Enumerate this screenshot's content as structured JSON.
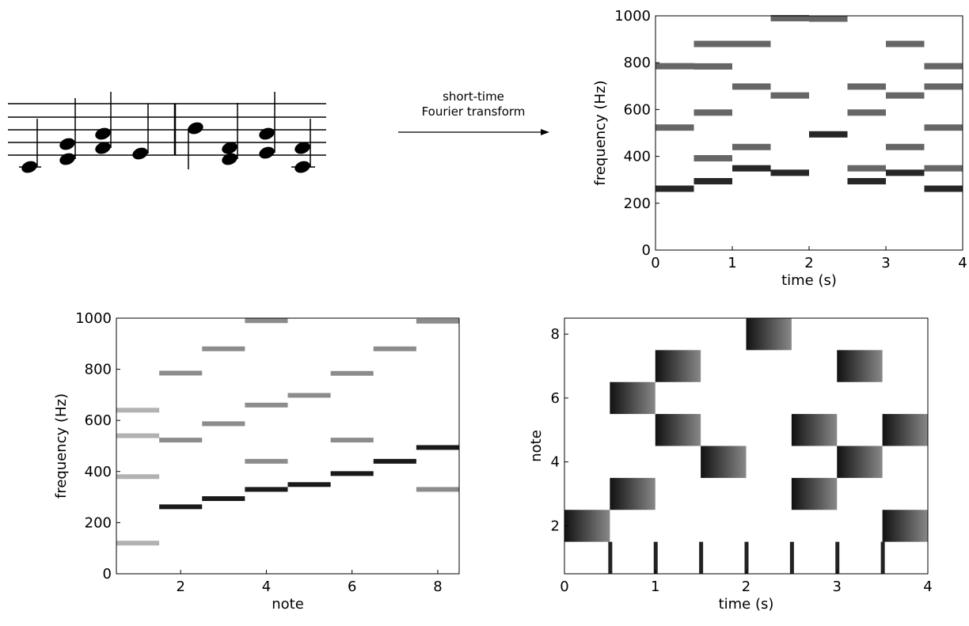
{
  "diagram": {
    "arrow_label": [
      "short-time",
      "Fourier transform"
    ]
  },
  "chart_data": [
    {
      "type": "spectrogram",
      "xlabel": "time (s)",
      "ylabel": "frequency (Hz)",
      "xlim": [
        0,
        4
      ],
      "ylim": [
        0,
        1000
      ],
      "xticks": [
        0,
        1,
        2,
        3,
        4
      ],
      "yticks": [
        0,
        200,
        400,
        600,
        800,
        1000
      ],
      "time_edges": [
        0,
        0.5,
        1,
        1.5,
        2,
        2.5,
        3,
        3.5,
        4
      ],
      "partials": [
        [
          262,
          523,
          785
        ],
        [
          294,
          392,
          587,
          784,
          880
        ],
        [
          349,
          440,
          698,
          880
        ],
        [
          330,
          660,
          990
        ],
        [
          494,
          988
        ],
        [
          294,
          349,
          587,
          698
        ],
        [
          330,
          440,
          660,
          880
        ],
        [
          262,
          349,
          523,
          698,
          785
        ]
      ]
    },
    {
      "type": "note-spectra",
      "xlabel": "note",
      "ylabel": "frequency (Hz)",
      "xlim": [
        0.5,
        8.5
      ],
      "ylim": [
        0,
        1000
      ],
      "xticks": [
        2,
        4,
        6,
        8
      ],
      "yticks": [
        0,
        200,
        400,
        600,
        800,
        1000
      ],
      "notes": [
        1,
        2,
        3,
        4,
        5,
        6,
        7,
        8
      ],
      "partials": [
        [
          120,
          380,
          540,
          640
        ],
        [
          262,
          523,
          785
        ],
        [
          294,
          587,
          880
        ],
        [
          330,
          440,
          660,
          990
        ],
        [
          349,
          698
        ],
        [
          392,
          523,
          784
        ],
        [
          440,
          880
        ],
        [
          494,
          330,
          988
        ]
      ]
    },
    {
      "type": "activation",
      "xlabel": "time (s)",
      "ylabel": "note",
      "xlim": [
        0,
        4
      ],
      "ylim": [
        0.5,
        8.5
      ],
      "xticks": [
        0,
        1,
        2,
        3,
        4
      ],
      "yticks": [
        2,
        4,
        6,
        8
      ],
      "time_edges": [
        0,
        0.5,
        1,
        1.5,
        2,
        2.5,
        3,
        3.5,
        4
      ],
      "active_notes": [
        [
          2
        ],
        [
          3,
          6
        ],
        [
          5,
          7
        ],
        [
          4
        ],
        [
          8
        ],
        [
          3,
          5
        ],
        [
          4,
          7
        ],
        [
          2,
          5
        ]
      ],
      "onsets": [
        0.5,
        1,
        1.5,
        2,
        2.5,
        3,
        3.5
      ]
    }
  ]
}
